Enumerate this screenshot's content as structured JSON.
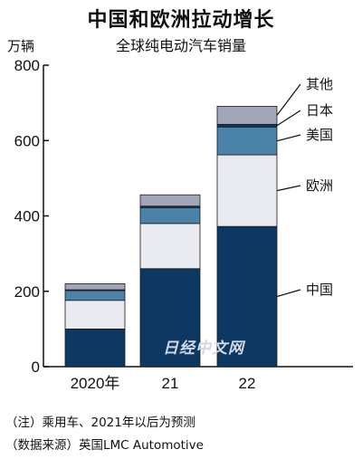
{
  "title": "中国和欧洲拉动增长",
  "subtitle": "全球纯电动汽车销量",
  "unit": "万辆",
  "watermark": "日经中文网",
  "notes": [
    "（注）乘用车、2021年以后为预测",
    "（数据来源）英国LMC Automotive"
  ],
  "chart_data": {
    "type": "bar",
    "stacked": true,
    "categories": [
      "2020年",
      "21",
      "22"
    ],
    "ylim": [
      0,
      800
    ],
    "yticks": [
      0,
      200,
      400,
      600,
      800
    ],
    "grid": false,
    "series": [
      {
        "name": "中国",
        "color": "#0c3862",
        "values": [
          100,
          260,
          372
        ]
      },
      {
        "name": "欧洲",
        "color": "#e8eaf0",
        "values": [
          76,
          120,
          190
        ]
      },
      {
        "name": "美国",
        "color": "#4a82a8",
        "values": [
          26,
          42,
          74
        ]
      },
      {
        "name": "日本",
        "color": "#0c3862",
        "values": [
          2,
          4,
          7
        ]
      },
      {
        "name": "其他",
        "color": "#a3a6bb",
        "values": [
          16,
          30,
          48
        ]
      }
    ]
  }
}
